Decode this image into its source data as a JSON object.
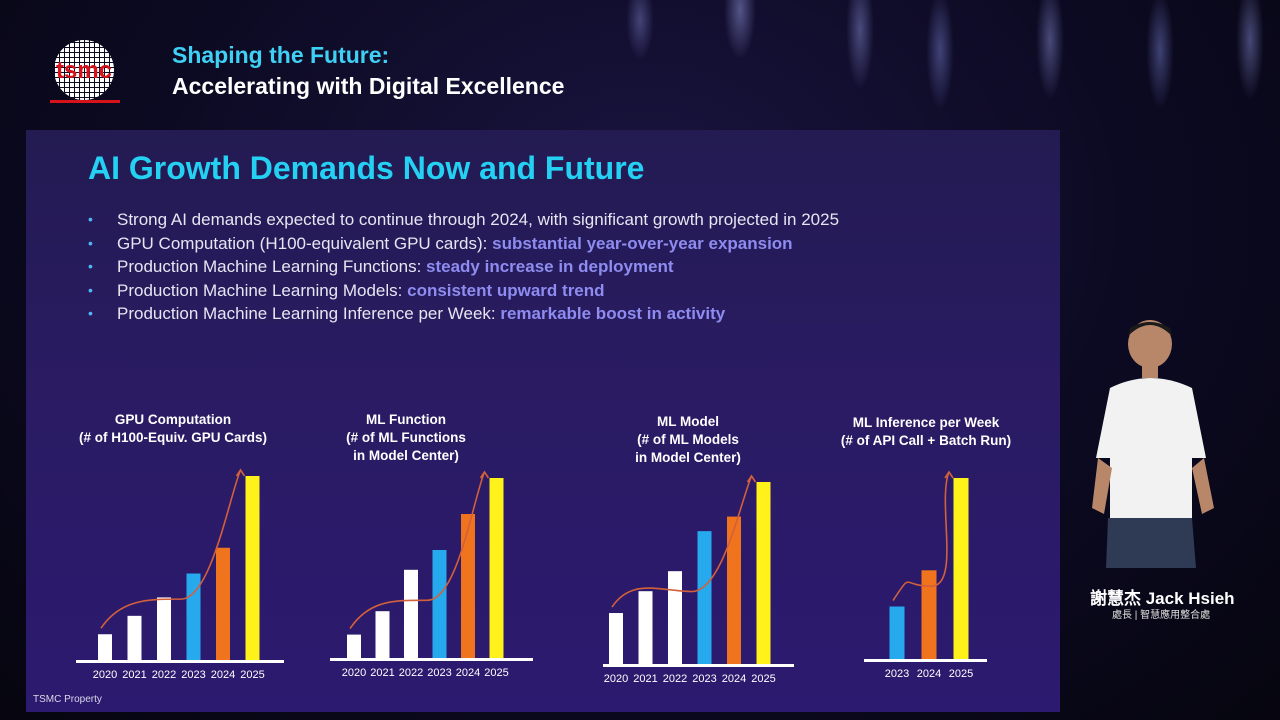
{
  "header": {
    "logo_text": "tsmc",
    "subtitle": "Shaping the Future:",
    "title": "Accelerating with Digital Excellence"
  },
  "slide": {
    "title": "AI Growth Demands Now and Future",
    "bullets": [
      {
        "text": "Strong AI demands expected to continue through 2024, with significant growth projected in 2025",
        "highlight": ""
      },
      {
        "text": "GPU Computation (H100-equivalent GPU cards): ",
        "highlight": "substantial year-over-year expansion"
      },
      {
        "text": "Production Machine Learning Functions: ",
        "highlight": "steady increase in deployment"
      },
      {
        "text": "Production Machine Learning Models: ",
        "highlight": "consistent upward trend"
      },
      {
        "text": "Production Machine Learning Inference per Week: ",
        "highlight": "remarkable boost in activity"
      }
    ],
    "footer": "TSMC Property"
  },
  "speaker": {
    "name": "謝慧杰 Jack Hsieh",
    "role": "處長 | 智慧應用整合處"
  },
  "colors": {
    "past": "#ffffff",
    "y2023": "#27a9ee",
    "y2024": "#f0731e",
    "y2025": "#fff21a",
    "accent": "#24d1f3",
    "highlight": "#8e8cf0",
    "trend_arrow": "#d2603b"
  },
  "chart_data": [
    {
      "type": "bar",
      "title": [
        "GPU Computation",
        "(# of H100-Equiv. GPU Cards)"
      ],
      "categories": [
        "2020",
        "2021",
        "2022",
        "2023",
        "2024",
        "2025"
      ],
      "values": [
        14,
        24,
        34,
        47,
        61,
        100
      ],
      "ylim": [
        0,
        100
      ],
      "yaxis_labels": "none",
      "trend_arrow": true
    },
    {
      "type": "bar",
      "title": [
        "ML Function",
        "(# of ML Functions",
        "in Model Center)"
      ],
      "categories": [
        "2020",
        "2021",
        "2022",
        "2023",
        "2024",
        "2025"
      ],
      "values": [
        13,
        26,
        49,
        60,
        80,
        100
      ],
      "ylim": [
        0,
        100
      ],
      "yaxis_labels": "none",
      "trend_arrow": true
    },
    {
      "type": "bar",
      "title": [
        "ML Model",
        "(# of ML Models",
        "in Model Center)"
      ],
      "categories": [
        "2020",
        "2021",
        "2022",
        "2023",
        "2024",
        "2025"
      ],
      "values": [
        28,
        40,
        51,
        73,
        81,
        100
      ],
      "ylim": [
        0,
        100
      ],
      "yaxis_labels": "none",
      "trend_arrow": true
    },
    {
      "type": "bar",
      "title": [
        "ML Inference per Week",
        "(# of API Call + Batch Run)"
      ],
      "categories": [
        "2023",
        "2024",
        "2025"
      ],
      "values": [
        29,
        49,
        100
      ],
      "ylim": [
        0,
        100
      ],
      "yaxis_labels": "none",
      "trend_arrow": true
    }
  ]
}
